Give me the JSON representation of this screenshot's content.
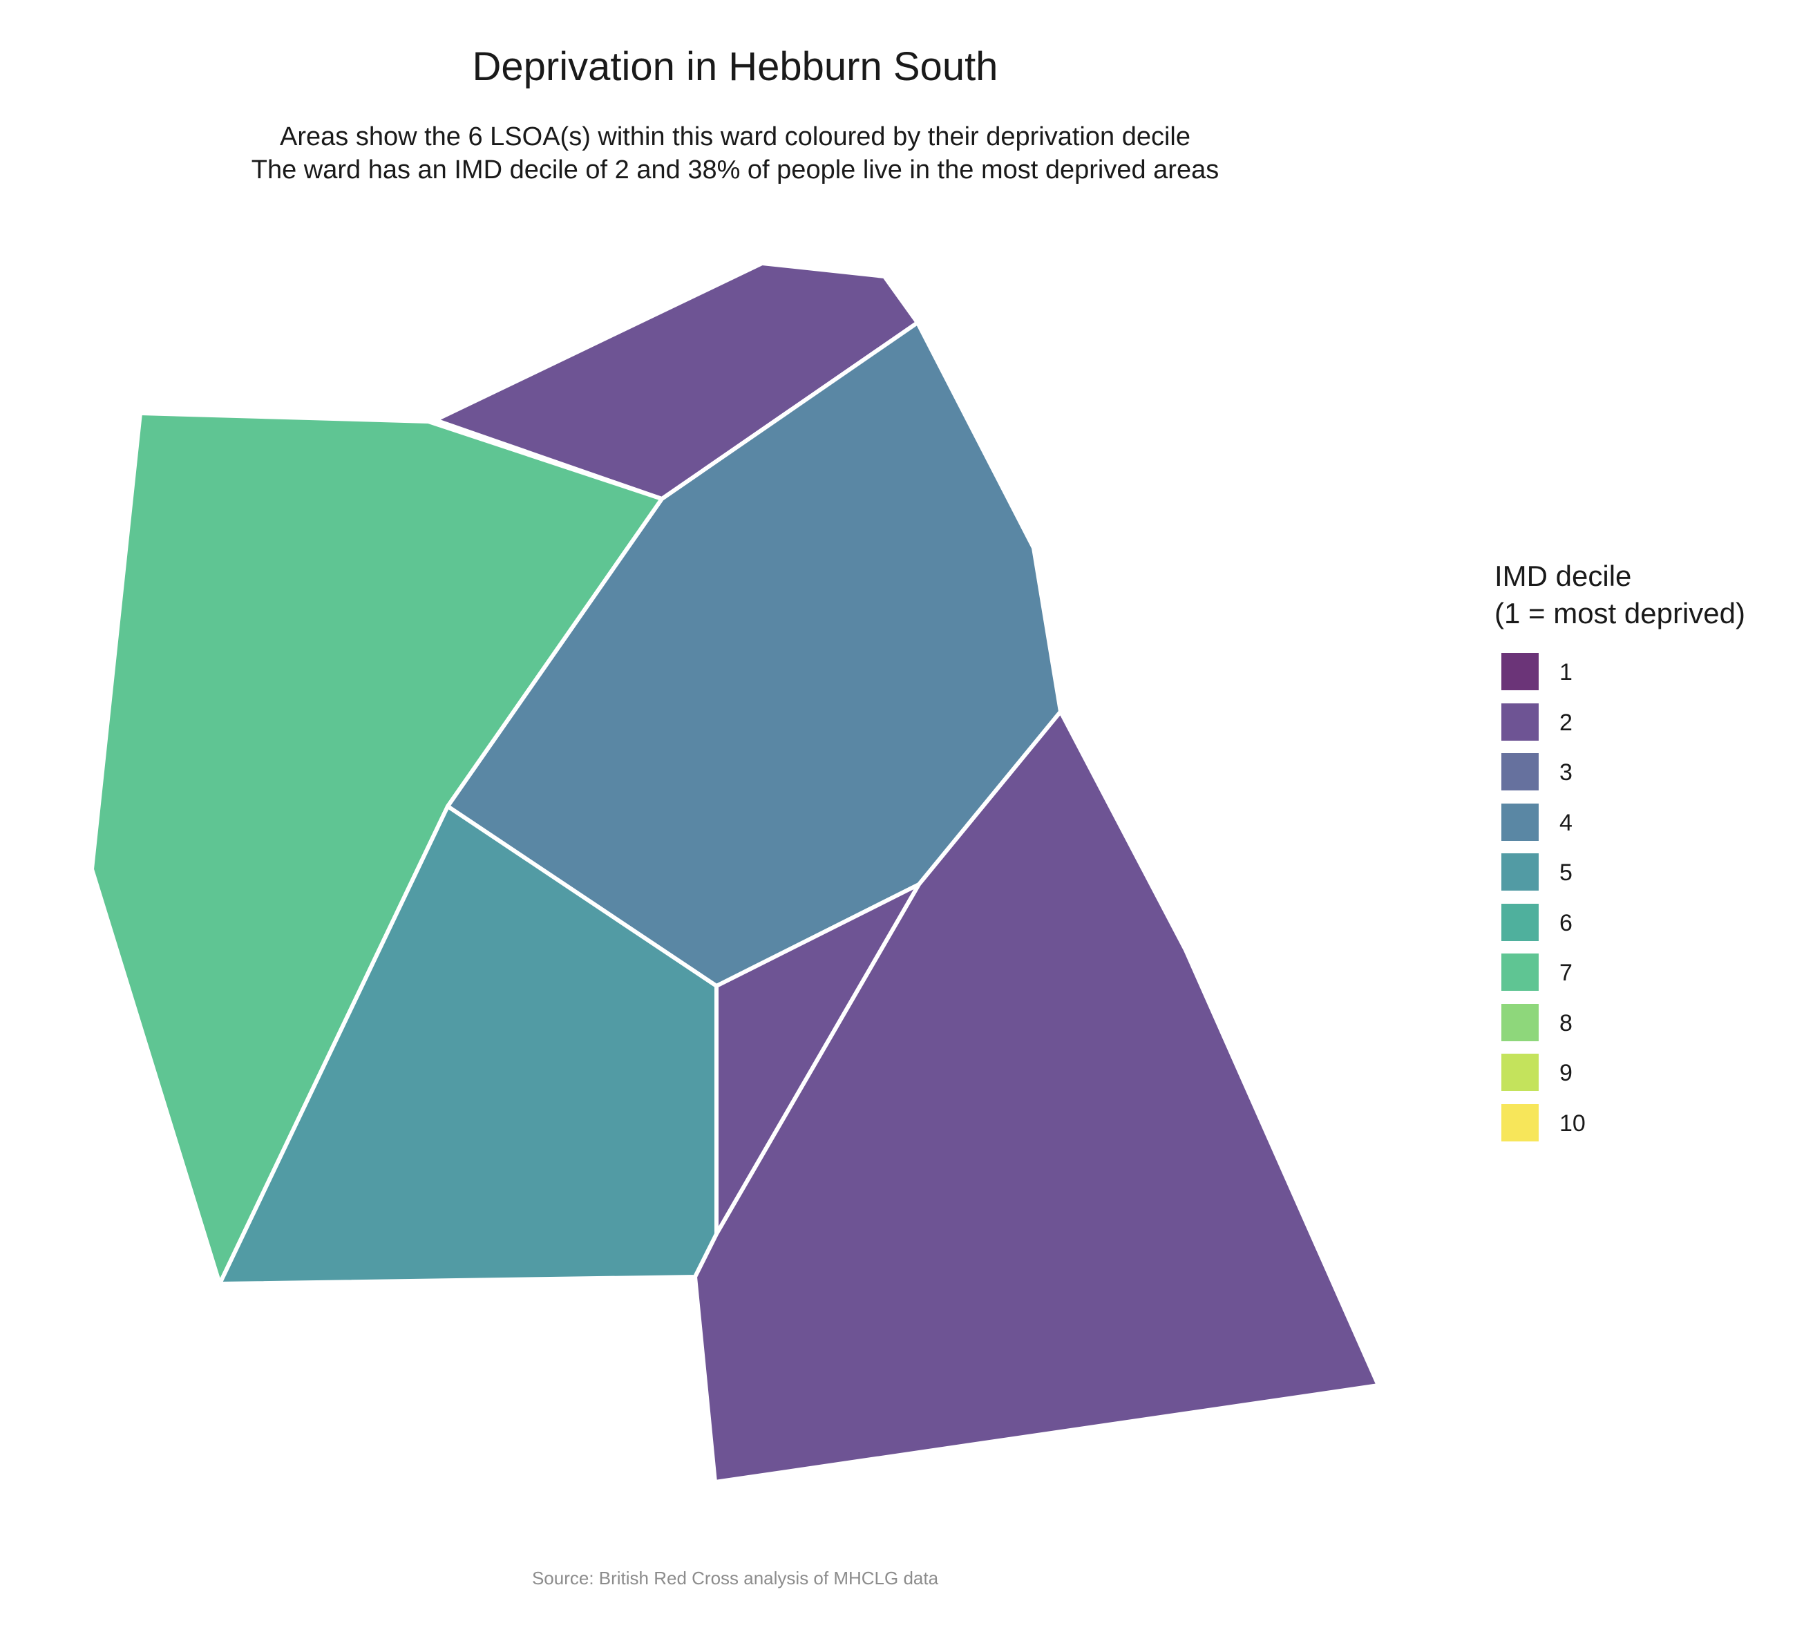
{
  "title": "Deprivation in Hebburn South",
  "subtitle": {
    "line1": "Areas show the 6 LSOA(s) within this ward coloured by their deprivation decile",
    "line2": "The ward has an IMD decile of 2 and 38% of people live in the most deprived areas"
  },
  "legend": {
    "title_line1": "IMD decile",
    "title_line2": "(1 = most deprived)",
    "items": [
      {
        "label": "1",
        "color": "#6b3478"
      },
      {
        "label": "2",
        "color": "#6e5494"
      },
      {
        "label": "3",
        "color": "#66719e"
      },
      {
        "label": "4",
        "color": "#5a87a4"
      },
      {
        "label": "5",
        "color": "#529ba4"
      },
      {
        "label": "6",
        "color": "#4fb09d"
      },
      {
        "label": "7",
        "color": "#5fc593"
      },
      {
        "label": "8",
        "color": "#8ed77b"
      },
      {
        "label": "9",
        "color": "#c4e35c"
      },
      {
        "label": "10",
        "color": "#f7e65a"
      }
    ]
  },
  "map_areas": [
    {
      "area": "north",
      "decile": 2
    },
    {
      "area": "west",
      "decile": 7
    },
    {
      "area": "central",
      "decile": 4
    },
    {
      "area": "south-west",
      "decile": 5
    },
    {
      "area": "south-central",
      "decile": 2
    },
    {
      "area": "south-east",
      "decile": 2
    }
  ],
  "caption": "Source: British Red Cross analysis of MHCLG data"
}
